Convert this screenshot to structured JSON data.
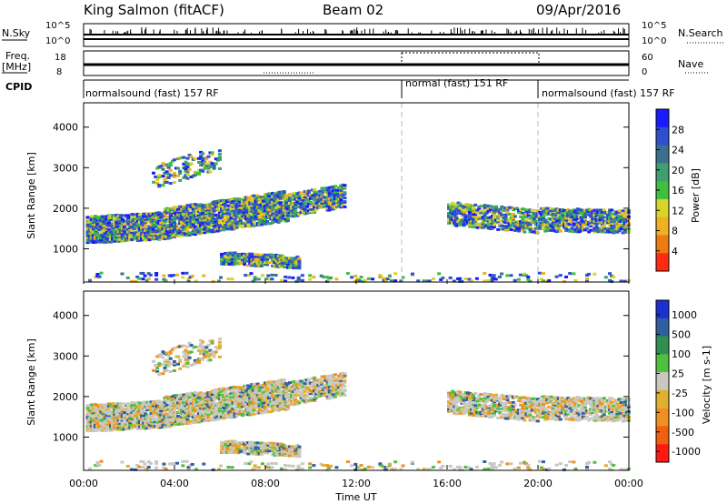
{
  "header": {
    "station": "King Salmon (fitACF)",
    "beam": "Beam 02",
    "date": "09/Apr/2016"
  },
  "strips": {
    "nsky_label": "N.Sky",
    "nsearch_label": "N.Search",
    "freq_label_1": "Freq.",
    "freq_label_2": "[MHz]",
    "nave_label": "Nave",
    "cpid_label": "CPID",
    "left_ticks_top": [
      "10^5",
      "10^0"
    ],
    "right_ticks_top": [
      "10^5",
      "10^0"
    ],
    "left_ticks_freq": [
      "18",
      "8"
    ],
    "right_ticks_nave": [
      "60",
      "0"
    ]
  },
  "cpid_segments": [
    {
      "label": "normalsound (fast) 157 RF",
      "start": 0,
      "end": 14
    },
    {
      "label": "normal (fast) 151 RF",
      "start": 14,
      "end": 20
    },
    {
      "label": "normalsound (fast) 157 RF",
      "start": 20,
      "end": 24
    }
  ],
  "chart_data": [
    {
      "type": "heatmap",
      "title": "Power",
      "xlabel": "Time UT",
      "ylabel": "Slant Range [km]",
      "xlim": [
        0,
        24
      ],
      "ylim": [
        180,
        4600
      ],
      "x_ticks": [
        "00:00",
        "04:00",
        "08:00",
        "12:00",
        "16:00",
        "20:00",
        "00:00"
      ],
      "y_ticks": [
        1000,
        2000,
        3000,
        4000
      ],
      "colorbar_label": "Power [dB]",
      "colorbar_ticks": [
        "4",
        "8",
        "12",
        "16",
        "20",
        "24",
        "28"
      ],
      "colorbar_colors": [
        "#1a1aff",
        "#2f4fcf",
        "#3a6f8f",
        "#3f9f6f",
        "#3fbf3f",
        "#d6d62a",
        "#f0b020",
        "#ef7a10",
        "#ff2a10"
      ]
    },
    {
      "type": "heatmap",
      "title": "Velocity",
      "xlabel": "Time UT",
      "ylabel": "Slant Range [km]",
      "xlim": [
        0,
        24
      ],
      "ylim": [
        180,
        4600
      ],
      "x_ticks": [
        "00:00",
        "04:00",
        "08:00",
        "12:00",
        "16:00",
        "20:00",
        "00:00"
      ],
      "y_ticks": [
        1000,
        2000,
        3000,
        4000
      ],
      "colorbar_label": "Velocity [m s-1]",
      "colorbar_ticks": [
        "1000",
        "500",
        "100",
        "25",
        "-25",
        "-100",
        "-500",
        "-1000"
      ],
      "colorbar_colors": [
        "#1c2fd0",
        "#2f5fa0",
        "#2f8f4f",
        "#4fbf3f",
        "#c8c8c0",
        "#e0b030",
        "#f09020",
        "#f06010",
        "#ff1a10"
      ]
    }
  ]
}
